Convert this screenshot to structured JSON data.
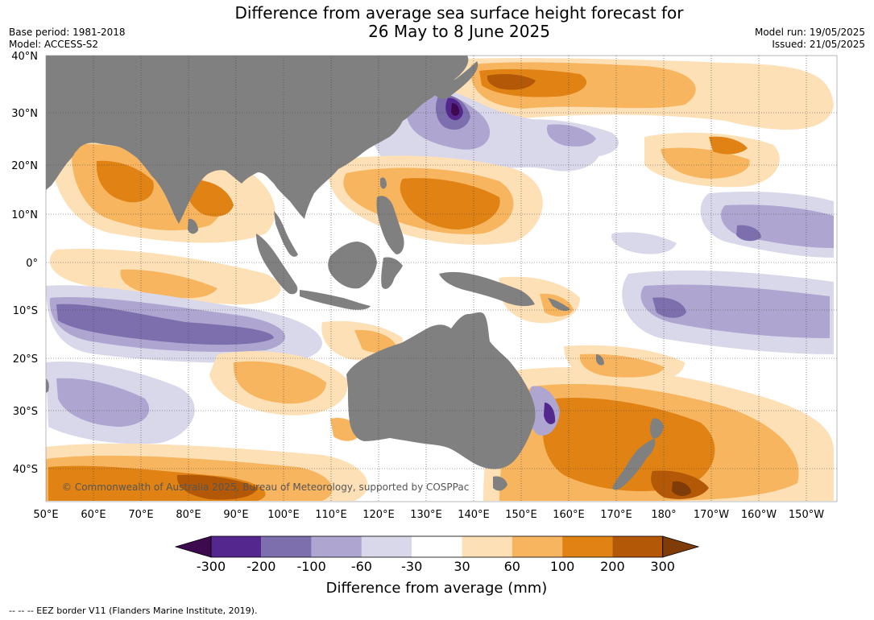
{
  "title_line1": "Difference from average sea surface height forecast for",
  "title_line2": "26 May to 8 June 2025",
  "base_period": "Base period: 1981-2018",
  "model": "Model: ACCESS-S2",
  "model_run": "Model run: 19/05/2025",
  "issued": "Issued: 21/05/2025",
  "copyright": "© Commonwealth of Australia 2025, Bureau of Meteorology, supported by COSPPac",
  "footnote": "--  --  -- EEZ border V11 (Flanders Marine Institute, 2019).",
  "lat_labels": [
    "40°N",
    "30°N",
    "20°N",
    "10°N",
    "0°",
    "10°S",
    "20°S",
    "30°S",
    "40°S"
  ],
  "lon_labels": [
    "50°E",
    "60°E",
    "70°E",
    "80°E",
    "90°E",
    "100°E",
    "110°E",
    "120°E",
    "130°E",
    "140°E",
    "150°E",
    "160°E",
    "170°E",
    "180°",
    "170°W",
    "160°W",
    "150°W"
  ],
  "colorbar": {
    "title": "Difference from average (mm)",
    "ticks": [
      "-300",
      "-200",
      "-100",
      "-60",
      "-30",
      "30",
      "60",
      "100",
      "200",
      "300"
    ],
    "colors": [
      "#3d0a4f",
      "#54278f",
      "#7d6fad",
      "#aea6d0",
      "#d9d8eb",
      "#ffffff",
      "#fde0b6",
      "#f8b55f",
      "#e08214",
      "#b35806",
      "#7f3b08"
    ]
  },
  "colors": {
    "land": "#808080",
    "grid": "#444444"
  }
}
